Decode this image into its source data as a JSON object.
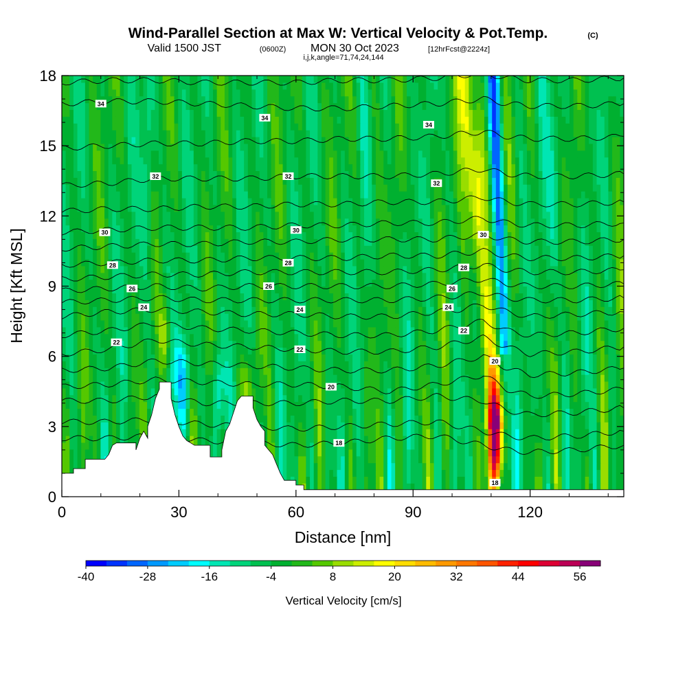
{
  "header": {
    "title": "Wind-Parallel Section at Max W: Vertical Velocity & Pot.Temp.",
    "copyright": "(C)",
    "valid_prefix": "Valid 1500 JST",
    "valid_zulu": "(0600Z)",
    "valid_date": "MON 30 Oct 2023",
    "forecast": "[12hrFcst@2224z]",
    "params": "i,j,k,angle=71,74,24,144"
  },
  "chart_data": {
    "type": "heatmap",
    "xlabel": "Distance [nm]",
    "ylabel": "Height [Kft MSL]",
    "xlim": [
      0,
      144
    ],
    "ylim": [
      0,
      18
    ],
    "x_ticks": [
      0,
      30,
      60,
      90,
      120
    ],
    "x_tick_labels": [
      "0",
      "30",
      "60",
      "90",
      "120"
    ],
    "y_ticks": [
      0,
      3,
      6,
      9,
      12,
      15,
      18
    ],
    "y_tick_labels": [
      "0",
      "3",
      "6",
      "9",
      "12",
      "15",
      "18"
    ],
    "colorbar": {
      "title": "Vertical Velocity [cm/s]",
      "min": -40,
      "max": 60,
      "step": 4,
      "tick_values": [
        -40,
        -28,
        -16,
        -4,
        8,
        20,
        32,
        44,
        56
      ],
      "tick_labels": [
        "-40",
        "-28",
        "-16",
        "-4",
        "8",
        "20",
        "32",
        "44",
        "56"
      ],
      "colors": [
        "#0000ff",
        "#0033ff",
        "#0066ff",
        "#0099ff",
        "#00ccff",
        "#00ffff",
        "#00e6b3",
        "#00d47a",
        "#00c050",
        "#00b030",
        "#22b81a",
        "#55c800",
        "#99dd00",
        "#ccee00",
        "#ffff00",
        "#ffdd00",
        "#ffbb00",
        "#ff9900",
        "#ff7700",
        "#ff5500",
        "#ff2200",
        "#ff0000",
        "#dd0033",
        "#bb0055",
        "#880077"
      ]
    },
    "terrain": [
      [
        0,
        0
      ],
      [
        0,
        1.0
      ],
      [
        3,
        1.0
      ],
      [
        3,
        1.2
      ],
      [
        6,
        1.2
      ],
      [
        6,
        1.6
      ],
      [
        11,
        1.6
      ],
      [
        11,
        1.6
      ],
      [
        12,
        1.8
      ],
      [
        13,
        2.2
      ],
      [
        14,
        2.3
      ],
      [
        19,
        2.3
      ],
      [
        19,
        2.0
      ],
      [
        20,
        2.5
      ],
      [
        21,
        2.8
      ],
      [
        22,
        2.5
      ],
      [
        22,
        3.0
      ],
      [
        23,
        3.5
      ],
      [
        24,
        4.2
      ],
      [
        25,
        4.6
      ],
      [
        25,
        4.9
      ],
      [
        28,
        4.9
      ],
      [
        28,
        4.2
      ],
      [
        29,
        3.5
      ],
      [
        30,
        3.0
      ],
      [
        31,
        2.6
      ],
      [
        32,
        2.4
      ],
      [
        33,
        2.3
      ],
      [
        34,
        2.2
      ],
      [
        38,
        2.2
      ],
      [
        38,
        1.7
      ],
      [
        41,
        1.7
      ],
      [
        41,
        2.0
      ],
      [
        42,
        2.8
      ],
      [
        43,
        3.1
      ],
      [
        44,
        3.6
      ],
      [
        45,
        4.1
      ],
      [
        46,
        4.3
      ],
      [
        49,
        4.3
      ],
      [
        49,
        3.8
      ],
      [
        50,
        3.3
      ],
      [
        51,
        3.0
      ],
      [
        52,
        2.8
      ],
      [
        52,
        2.2
      ],
      [
        54,
        1.8
      ],
      [
        55,
        1.4
      ],
      [
        56,
        1.0
      ],
      [
        57,
        0.7
      ],
      [
        60,
        0.7
      ],
      [
        60,
        0.5
      ],
      [
        62,
        0.5
      ],
      [
        62,
        0.3
      ],
      [
        144,
        0.3
      ],
      [
        144,
        0
      ]
    ],
    "isentropes": {
      "levels": [
        17,
        18,
        19,
        20,
        21,
        22,
        23,
        24,
        25,
        26,
        27,
        28,
        29,
        30,
        31,
        32,
        33,
        34,
        35
      ],
      "heights_at_x": {
        "x": [
          0,
          12,
          24,
          36,
          48,
          60,
          72,
          84,
          96,
          102,
          108,
          114,
          120,
          132,
          144
        ],
        "17": [
          2.5,
          2.5,
          2.6,
          2.4,
          2.3,
          2.2,
          2.3,
          2.5,
          2.6,
          2.4,
          2.2,
          2.0,
          1.9,
          2.0,
          2.2
        ],
        "18": [
          3.2,
          3.2,
          3.3,
          3.1,
          3.0,
          2.9,
          3.0,
          3.1,
          3.2,
          3.0,
          2.8,
          2.6,
          2.5,
          2.6,
          2.8
        ],
        "19": [
          4.1,
          4.1,
          4.3,
          4.0,
          4.0,
          4.0,
          4.1,
          4.1,
          4.3,
          4.2,
          4.1,
          3.7,
          3.5,
          3.6,
          3.8
        ],
        "20": [
          4.7,
          4.8,
          5.0,
          4.9,
          4.8,
          4.8,
          4.7,
          4.5,
          4.8,
          5.0,
          5.2,
          4.6,
          4.3,
          4.4,
          4.6
        ],
        "21": [
          5.4,
          5.5,
          5.8,
          5.7,
          5.6,
          5.5,
          5.4,
          5.4,
          5.6,
          5.8,
          6.0,
          5.5,
          5.2,
          5.3,
          5.5
        ],
        "22": [
          6.1,
          6.3,
          6.7,
          6.5,
          6.4,
          6.3,
          6.2,
          6.2,
          6.4,
          6.6,
          6.8,
          6.4,
          6.1,
          6.2,
          6.4
        ],
        "23": [
          6.9,
          7.1,
          7.4,
          7.2,
          7.1,
          7.0,
          6.9,
          6.9,
          7.1,
          7.3,
          7.5,
          7.1,
          6.9,
          7.0,
          7.2
        ],
        "24": [
          7.7,
          7.9,
          8.0,
          7.9,
          7.8,
          7.8,
          7.7,
          7.7,
          7.9,
          8.0,
          8.2,
          7.9,
          7.7,
          7.8,
          7.9
        ],
        "25": [
          8.3,
          8.4,
          8.5,
          8.4,
          8.4,
          8.4,
          8.4,
          8.4,
          8.5,
          8.6,
          8.7,
          8.5,
          8.4,
          8.4,
          8.5
        ],
        "26": [
          8.8,
          8.9,
          9.0,
          8.9,
          9.0,
          9.0,
          9.0,
          9.0,
          9.1,
          9.2,
          9.3,
          9.1,
          9.0,
          9.0,
          9.1
        ],
        "27": [
          9.3,
          9.4,
          9.5,
          9.5,
          9.6,
          9.6,
          9.6,
          9.6,
          9.7,
          9.8,
          9.9,
          9.7,
          9.6,
          9.6,
          9.7
        ],
        "28": [
          9.9,
          10.0,
          10.1,
          10.1,
          10.2,
          10.2,
          10.2,
          10.3,
          10.3,
          10.4,
          10.5,
          10.3,
          10.2,
          10.2,
          10.3
        ],
        "29": [
          10.6,
          10.7,
          10.8,
          10.8,
          10.9,
          10.9,
          11.0,
          11.0,
          11.0,
          11.1,
          11.2,
          11.0,
          10.9,
          10.9,
          11.0
        ],
        "30": [
          11.3,
          11.4,
          11.5,
          11.5,
          11.5,
          11.6,
          11.6,
          11.7,
          11.7,
          11.8,
          11.9,
          11.7,
          11.6,
          11.6,
          11.7
        ],
        "31": [
          12.2,
          12.3,
          12.3,
          12.4,
          12.4,
          12.5,
          12.5,
          12.6,
          12.6,
          12.7,
          12.8,
          12.6,
          12.5,
          12.5,
          12.6
        ],
        "32": [
          13.3,
          13.4,
          13.6,
          13.6,
          13.6,
          13.7,
          13.7,
          13.7,
          13.8,
          13.9,
          14.0,
          13.8,
          13.7,
          13.7,
          13.8
        ],
        "33": [
          14.9,
          15.0,
          15.1,
          15.1,
          15.2,
          15.2,
          15.3,
          15.3,
          15.4,
          15.5,
          15.6,
          15.4,
          15.3,
          15.3,
          15.4
        ],
        "34": [
          16.8,
          16.9,
          16.9,
          16.8,
          16.7,
          16.6,
          16.6,
          16.7,
          16.8,
          16.9,
          17.0,
          16.8,
          16.7,
          16.7,
          16.8
        ],
        "35": [
          17.7,
          17.8,
          17.8,
          17.7,
          17.7,
          17.7,
          17.8,
          17.8,
          17.9,
          18.0,
          18.1,
          17.9,
          17.8,
          17.8,
          17.9
        ]
      }
    },
    "contour_labels": [
      {
        "text": "34",
        "x": 10,
        "y": 16.8
      },
      {
        "text": "34",
        "x": 52,
        "y": 16.2
      },
      {
        "text": "34",
        "x": 94,
        "y": 15.9
      },
      {
        "text": "32",
        "x": 24,
        "y": 13.7
      },
      {
        "text": "32",
        "x": 58,
        "y": 13.7
      },
      {
        "text": "32",
        "x": 96,
        "y": 13.4
      },
      {
        "text": "30",
        "x": 11,
        "y": 11.3
      },
      {
        "text": "30",
        "x": 60,
        "y": 11.4
      },
      {
        "text": "30",
        "x": 108,
        "y": 11.2
      },
      {
        "text": "28",
        "x": 13,
        "y": 9.9
      },
      {
        "text": "28",
        "x": 58,
        "y": 10.0
      },
      {
        "text": "28",
        "x": 103,
        "y": 9.8
      },
      {
        "text": "26",
        "x": 18,
        "y": 8.9
      },
      {
        "text": "26",
        "x": 53,
        "y": 9.0
      },
      {
        "text": "26",
        "x": 100,
        "y": 8.9
      },
      {
        "text": "24",
        "x": 21,
        "y": 8.1
      },
      {
        "text": "24",
        "x": 61,
        "y": 8.0
      },
      {
        "text": "24",
        "x": 99,
        "y": 8.1
      },
      {
        "text": "22",
        "x": 14,
        "y": 6.6
      },
      {
        "text": "22",
        "x": 61,
        "y": 6.3
      },
      {
        "text": "22",
        "x": 103,
        "y": 7.1
      },
      {
        "text": "20",
        "x": 69,
        "y": 4.7
      },
      {
        "text": "20",
        "x": 111,
        "y": 5.8
      },
      {
        "text": "18",
        "x": 71,
        "y": 2.3
      },
      {
        "text": "18",
        "x": 111,
        "y": 0.6
      }
    ]
  }
}
